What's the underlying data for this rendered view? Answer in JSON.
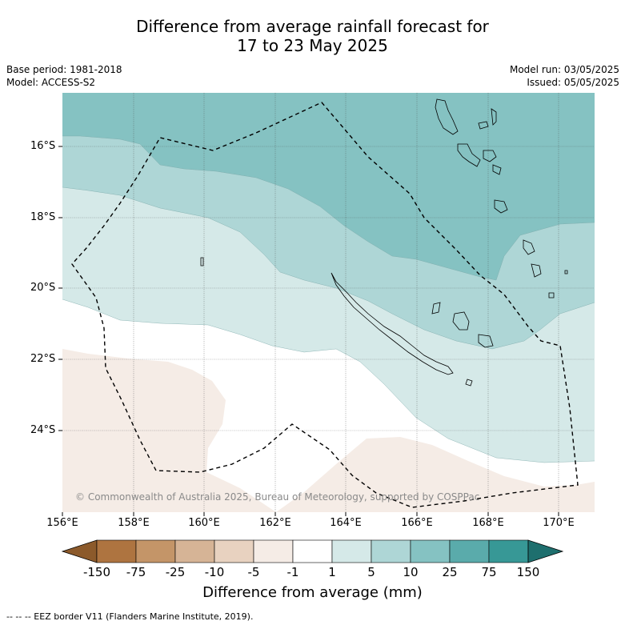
{
  "title": {
    "line1": "Difference from average rainfall forecast for",
    "line2": "17 to 23 May 2025"
  },
  "meta": {
    "base_period": "Base period: 1981-2018",
    "model": "Model: ACCESS-S2",
    "model_run": "Model run: 03/05/2025",
    "issued": "Issued: 05/05/2025"
  },
  "map": {
    "lat_labels": [
      "16°S",
      "18°S",
      "20°S",
      "22°S",
      "24°S"
    ],
    "lon_labels": [
      "156°E",
      "158°E",
      "160°E",
      "162°E",
      "164°E",
      "166°E",
      "168°E",
      "170°E"
    ],
    "copyright": "© Commonwealth of Australia 2025, Bureau of Meteorology, supported by COSPPac"
  },
  "colorbar": {
    "labels": [
      "-150",
      "-75",
      "-25",
      "-10",
      "-5",
      "-1",
      "1",
      "5",
      "10",
      "25",
      "75",
      "150"
    ],
    "colors": [
      "#8c5a2b",
      "#ae7440",
      "#c49568",
      "#d6b496",
      "#e8d2c0",
      "#f5ece6",
      "#ffffff",
      "#d5e9e8",
      "#aed6d6",
      "#85c2c2",
      "#5aabab",
      "#379896",
      "#1e6f6e"
    ],
    "title": "Difference from average (mm)"
  },
  "footer": "--  --  -- EEZ border V11 (Flanders Marine Institute, 2019)."
}
